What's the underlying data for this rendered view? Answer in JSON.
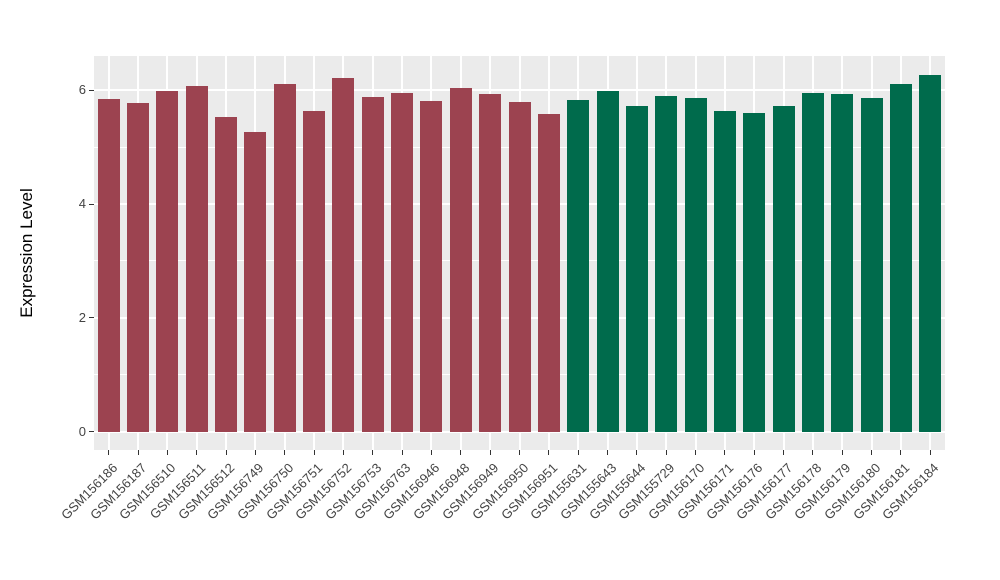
{
  "chart_data": {
    "type": "bar",
    "title": "",
    "xlabel": "",
    "ylabel": "Expression Level",
    "ylim": [
      -0.32,
      6.6
    ],
    "yticks": [
      0,
      2,
      4,
      6
    ],
    "ytick_labels": [
      "0",
      "2",
      "4",
      "6"
    ],
    "y_minor_gridlines": [
      1,
      3,
      5
    ],
    "grid": "on",
    "legend": "none",
    "categories": [
      "GSM156186",
      "GSM156187",
      "GSM156510",
      "GSM156511",
      "GSM156512",
      "GSM156749",
      "GSM156750",
      "GSM156751",
      "GSM156752",
      "GSM156753",
      "GSM156763",
      "GSM156946",
      "GSM156948",
      "GSM156949",
      "GSM156950",
      "GSM156951",
      "GSM155631",
      "GSM155643",
      "GSM155644",
      "GSM155729",
      "GSM156170",
      "GSM156171",
      "GSM156176",
      "GSM156177",
      "GSM156178",
      "GSM156179",
      "GSM156180",
      "GSM156181",
      "GSM156184"
    ],
    "values": [
      5.85,
      5.78,
      5.98,
      6.07,
      5.52,
      5.26,
      6.11,
      5.63,
      6.21,
      5.88,
      5.95,
      5.81,
      6.04,
      5.94,
      5.79,
      5.59,
      5.82,
      5.98,
      5.73,
      5.89,
      5.87,
      5.63,
      5.6,
      5.73,
      5.95,
      5.93,
      5.87,
      6.1,
      6.26
    ],
    "bar_groups": [
      "g1",
      "g1",
      "g1",
      "g1",
      "g1",
      "g1",
      "g1",
      "g1",
      "g1",
      "g1",
      "g1",
      "g1",
      "g1",
      "g1",
      "g1",
      "g1",
      "g2",
      "g2",
      "g2",
      "g2",
      "g2",
      "g2",
      "g2",
      "g2",
      "g2",
      "g2",
      "g2",
      "g2",
      "g2"
    ],
    "group_colors": {
      "g1": "#9C4350",
      "g2": "#006B4C"
    }
  },
  "colors": {
    "panel_bg": "#EBEBEB",
    "gridline": "#FFFFFF",
    "tick_mark": "#333333",
    "tick_label": "#444444",
    "axis_title": "#000000",
    "background": "#FFFFFF"
  }
}
